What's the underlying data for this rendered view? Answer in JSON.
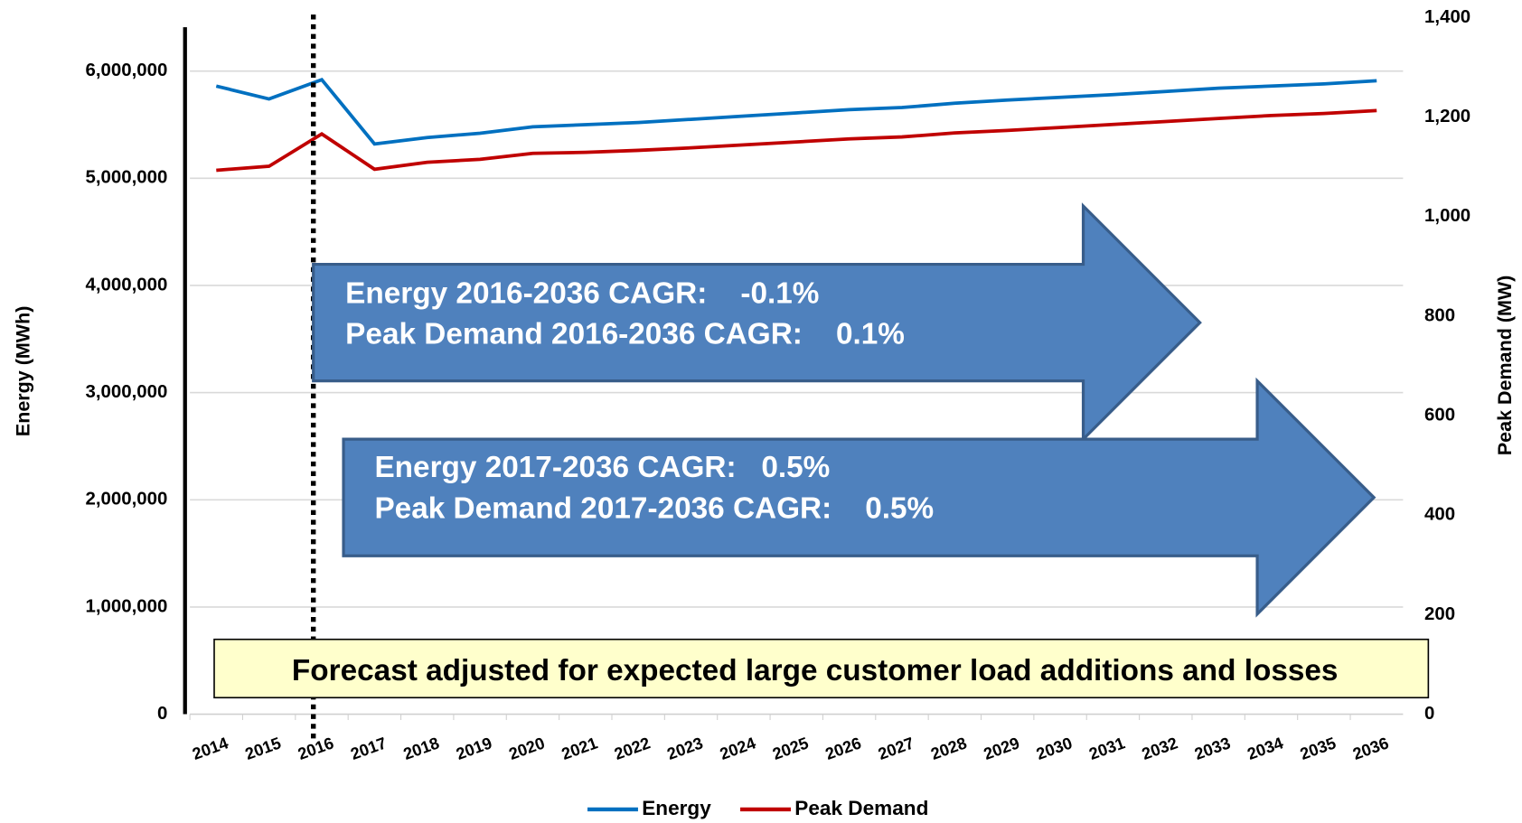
{
  "chart_data": {
    "type": "line",
    "categories": [
      "2014",
      "2015",
      "2016",
      "2017",
      "2018",
      "2019",
      "2020",
      "2021",
      "2022",
      "2023",
      "2024",
      "2025",
      "2026",
      "2027",
      "2028",
      "2029",
      "2030",
      "2031",
      "2032",
      "2033",
      "2034",
      "2035",
      "2036"
    ],
    "series": [
      {
        "name": "Energy",
        "color": "#0070c0",
        "values": [
          5860000,
          5740000,
          5920000,
          5320000,
          5380000,
          5420000,
          5480000,
          5500000,
          5520000,
          5550000,
          5580000,
          5610000,
          5640000,
          5660000,
          5700000,
          5730000,
          5755000,
          5780000,
          5810000,
          5840000,
          5860000,
          5880000,
          5910000
        ]
      },
      {
        "name": "Peak Demand",
        "color": "#c00000",
        "axis": "y2",
        "values": [
          1093,
          1101,
          1166,
          1095,
          1109,
          1115,
          1127,
          1129,
          1133,
          1138,
          1144,
          1150,
          1156,
          1160,
          1168,
          1173,
          1179,
          1185,
          1191,
          1197,
          1203,
          1207,
          1213
        ]
      }
    ],
    "ylabel": "Energy (MWh)",
    "y2label": "Peak Demand (MW)",
    "ylim": [
      0,
      6500000
    ],
    "yticks": [
      0,
      {
        "value": 1000000,
        "label": "1,000,000"
      },
      {
        "value": 2000000,
        "label": "2,000,000"
      },
      {
        "value": 3000000,
        "label": "3,000,000"
      },
      {
        "value": 4000000,
        "label": "4,000,000"
      },
      {
        "value": 5000000,
        "label": "5,000,000"
      },
      {
        "value": 6000000,
        "label": "6,000,000"
      }
    ],
    "y2lim": [
      0,
      1400
    ],
    "y2ticks": [
      0,
      200,
      400,
      600,
      800,
      {
        "value": 1000,
        "label": "1,000"
      },
      {
        "value": 1200,
        "label": "1,200"
      },
      {
        "value": 1400,
        "label": "1,400"
      }
    ],
    "grid": true,
    "legend": "bottom",
    "annotations": [
      "Energy 2016-2036 CAGR:    -0.1%",
      "Peak Demand 2016-2036 CAGR:    0.1%",
      "Energy 2017-2036 CAGR:   0.5%",
      "Peak Demand 2017-2036 CAGR:    0.5%",
      "Forecast adjusted for expected large customer load additions and losses"
    ]
  }
}
